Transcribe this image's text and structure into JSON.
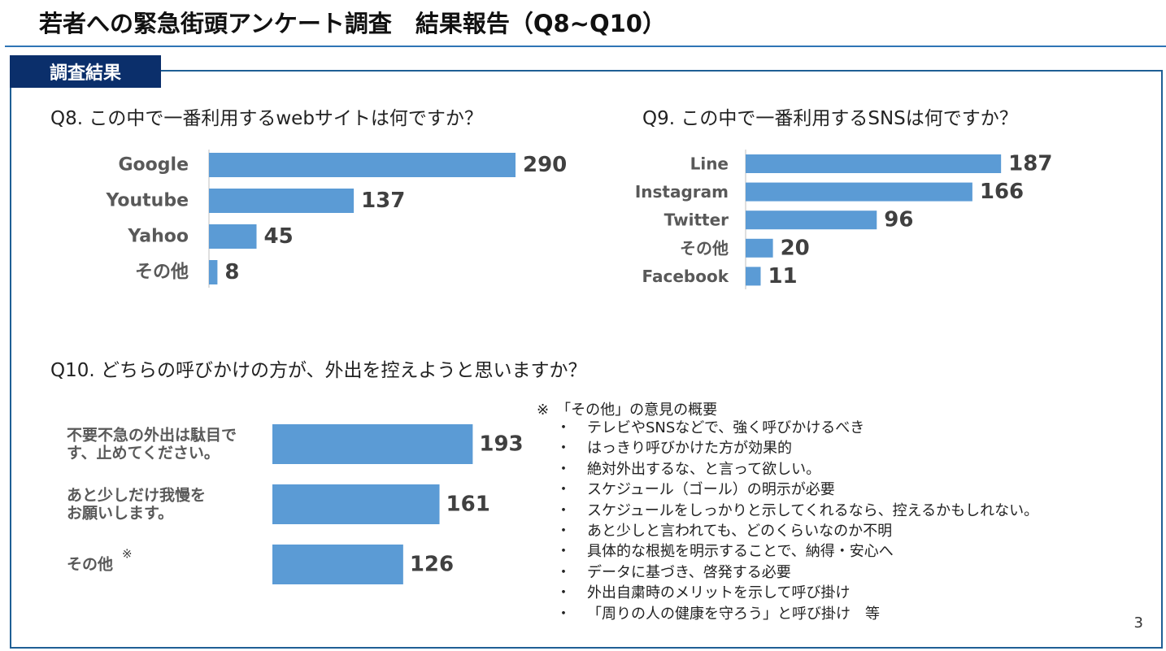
{
  "header": {
    "title": "若者への緊急街頭アンケート調査　結果報告（Q8~Q10）",
    "section_tab": "調査結果"
  },
  "colors": {
    "bar": "#5b9bd5",
    "accent": "#1f5f95",
    "tab": "#0b2f6b"
  },
  "chart_data": [
    {
      "type": "bar",
      "orientation": "horizontal",
      "title": "Q8. この中で一番利用するwebサイトは何ですか？",
      "categories": [
        "Google",
        "Youtube",
        "Yahoo",
        "その他"
      ],
      "values": [
        290,
        137,
        45,
        8
      ],
      "xlim": [
        0,
        300
      ],
      "grid": false
    },
    {
      "type": "bar",
      "orientation": "horizontal",
      "title": "Q9. この中で一番利用するSNSは何ですか？",
      "categories": [
        "Line",
        "Instagram",
        "Twitter",
        "その他",
        "Facebook"
      ],
      "values": [
        187,
        166,
        96,
        20,
        11
      ],
      "xlim": [
        0,
        200
      ],
      "grid": false
    },
    {
      "type": "bar",
      "orientation": "horizontal",
      "title": "Q10. どちらの呼びかけの方が、外出を控えようと思いますか？",
      "categories": [
        [
          "不要不急の外出は駄目で",
          "す、止めてください。"
        ],
        [
          "あと少しだけ我慢を",
          "お願いします。"
        ],
        [
          "その他"
        ]
      ],
      "category_marks": [
        "",
        "",
        "※"
      ],
      "values": [
        193,
        161,
        126
      ],
      "xlim": [
        0,
        235
      ],
      "grid": false
    }
  ],
  "notes": {
    "heading": "※　「その他」の意見の概要",
    "bullet": "・",
    "items": [
      "テレビやSNSなどで、強く呼びかけるべき",
      "はっきり呼びかけた方が効果的",
      "絶対外出するな、と言って欲しい。",
      "スケジュール（ゴール）の明示が必要",
      "スケジュールをしっかりと示してくれるなら、控えるかもしれない。",
      "あと少しと言われても、どのくらいなのか不明",
      "具体的な根拠を明示することで、納得・安心へ",
      "データに基づき、啓発する必要",
      "外出自粛時のメリットを示して呼び掛け",
      "「周りの人の健康を守ろう」と呼び掛け　等"
    ]
  },
  "page_number": "3"
}
